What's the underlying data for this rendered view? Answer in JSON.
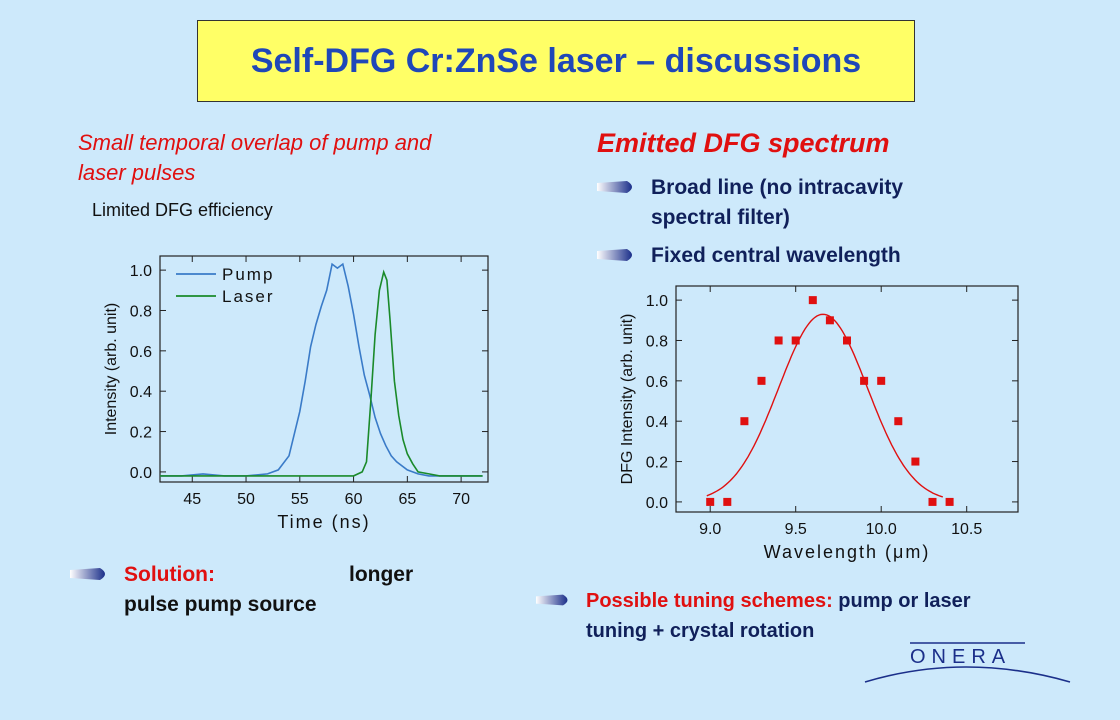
{
  "title": "Self-DFG Cr:ZnSe laser – discussions",
  "left": {
    "overlap_line1": "Small temporal overlap of pump and",
    "overlap_line2": "laser pulses",
    "efficiency": "Limited DFG efficiency",
    "solution_label": "Solution:",
    "solution_word": "longer",
    "solution_line2": "pulse pump source"
  },
  "right": {
    "heading": "Emitted DFG spectrum",
    "bullet1_line1": "Broad line (no intracavity",
    "bullet1_line2": "spectral filter)",
    "bullet2": "Fixed central wavelength",
    "tuning_label": "Possible tuning schemes:",
    "tuning_rest": " pump or laser",
    "tuning_line2": "tuning + crystal rotation"
  },
  "logo": "ONERA",
  "colors": {
    "title_bg": "#ffff66",
    "title_text": "#1f47b8",
    "accent_red": "#e01010",
    "background": "#cde9fb"
  },
  "chart_data": [
    {
      "type": "line",
      "title": "",
      "xlabel": "Time (ns)",
      "ylabel": "Intensity (arb. unit)",
      "xlim": [
        42,
        72.5
      ],
      "ylim": [
        -0.05,
        1.07
      ],
      "xticks": [
        45,
        50,
        55,
        60,
        65,
        70
      ],
      "yticks": [
        0.0,
        0.2,
        0.4,
        0.6,
        0.8,
        1.0
      ],
      "legend_position": "top-left",
      "series": [
        {
          "name": "Pump",
          "color": "#3a7bc8",
          "x": [
            42,
            44,
            46,
            48,
            50,
            52,
            53,
            54,
            55,
            55.5,
            56,
            56.5,
            57,
            57.5,
            58,
            58.5,
            59,
            59.5,
            60,
            60.5,
            61,
            61.5,
            62,
            62.5,
            63,
            63.5,
            64,
            65,
            66,
            67,
            68,
            70,
            72
          ],
          "y": [
            -0.02,
            -0.02,
            -0.01,
            -0.02,
            -0.02,
            -0.01,
            0.01,
            0.08,
            0.3,
            0.45,
            0.62,
            0.73,
            0.82,
            0.9,
            1.03,
            1.01,
            1.03,
            0.92,
            0.78,
            0.62,
            0.48,
            0.38,
            0.27,
            0.19,
            0.13,
            0.08,
            0.05,
            0.01,
            -0.01,
            -0.02,
            -0.02,
            -0.02,
            -0.02
          ]
        },
        {
          "name": "Laser",
          "color": "#1a8a2a",
          "x": [
            42,
            46,
            50,
            55,
            58,
            60,
            60.8,
            61.2,
            61.6,
            62,
            62.4,
            62.8,
            63.1,
            63.4,
            63.8,
            64.2,
            64.6,
            65,
            65.5,
            66,
            67,
            68,
            70,
            72
          ],
          "y": [
            -0.02,
            -0.02,
            -0.02,
            -0.02,
            -0.02,
            -0.02,
            0.0,
            0.05,
            0.35,
            0.68,
            0.9,
            0.99,
            0.95,
            0.75,
            0.45,
            0.28,
            0.16,
            0.09,
            0.04,
            0.0,
            -0.01,
            -0.02,
            -0.02,
            -0.02
          ]
        }
      ]
    },
    {
      "type": "scatter",
      "title": "",
      "xlabel": "Wavelength (μm)",
      "ylabel": "DFG Intensity (arb. unit)",
      "xlim": [
        8.8,
        10.8
      ],
      "ylim": [
        -0.05,
        1.07
      ],
      "xticks": [
        9.0,
        9.5,
        10.0,
        10.5
      ],
      "xtick_labels": [
        "9.0",
        "9.5",
        "10.0",
        "10.5"
      ],
      "yticks": [
        0.0,
        0.2,
        0.4,
        0.6,
        0.8,
        1.0
      ],
      "series": [
        {
          "name": "",
          "color": "#e01010",
          "x": [
            9.0,
            9.1,
            9.2,
            9.3,
            9.4,
            9.5,
            9.6,
            9.7,
            9.8,
            9.9,
            10.0,
            10.1,
            10.2,
            10.3,
            10.4
          ],
          "y": [
            0.0,
            0.0,
            0.4,
            0.6,
            0.8,
            0.8,
            1.0,
            0.9,
            0.8,
            0.6,
            0.6,
            0.4,
            0.2,
            0.0,
            0.0
          ]
        }
      ],
      "fit": {
        "color": "#e01010",
        "peak": 0.93,
        "center": 9.66,
        "sigma": 0.26
      }
    }
  ]
}
